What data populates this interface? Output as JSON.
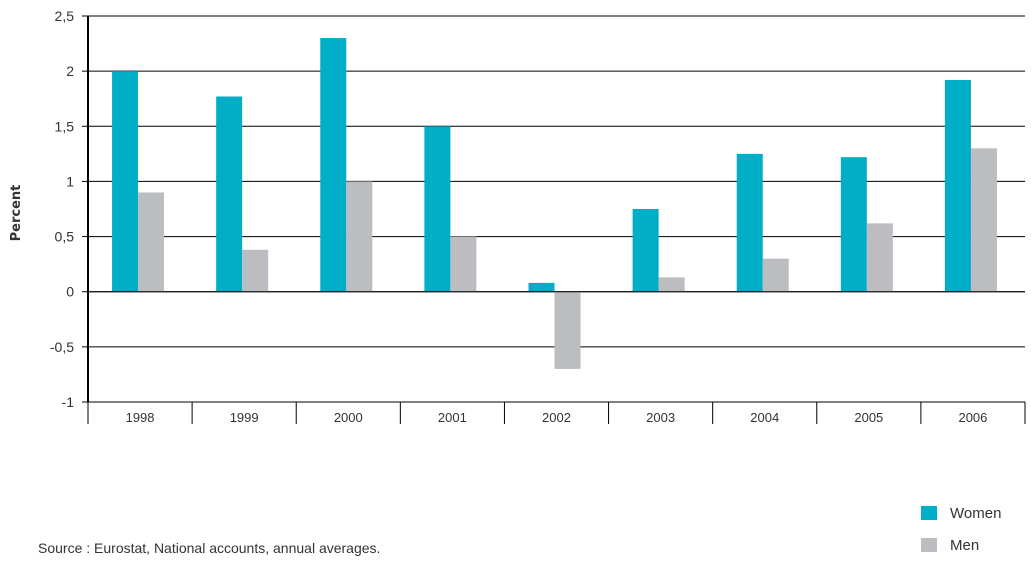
{
  "chart_data": {
    "type": "bar",
    "categories": [
      "1998",
      "1999",
      "2000",
      "2001",
      "2002",
      "2003",
      "2004",
      "2005",
      "2006"
    ],
    "series": [
      {
        "name": "Women",
        "color": "#00aec7",
        "values": [
          2.0,
          1.77,
          2.3,
          1.5,
          0.08,
          0.75,
          1.25,
          1.22,
          1.92
        ]
      },
      {
        "name": "Men",
        "color": "#bcbdc0",
        "values": [
          0.9,
          0.38,
          1.0,
          0.5,
          -0.7,
          0.13,
          0.3,
          0.62,
          1.3
        ]
      }
    ],
    "ylabel": "Percent",
    "xlabel": "",
    "ylim": [
      -1,
      2.5
    ],
    "yticks": [
      2.5,
      2,
      1.5,
      1,
      0.5,
      0,
      -0.5,
      -1
    ],
    "ytick_labels": [
      "2,5",
      "2",
      "1,5",
      "1",
      "0,5",
      "0",
      "-0,5",
      "-1"
    ],
    "grid": true,
    "legend_position": "bottom-right"
  },
  "source": "Source : Eurostat, National accounts, annual averages."
}
